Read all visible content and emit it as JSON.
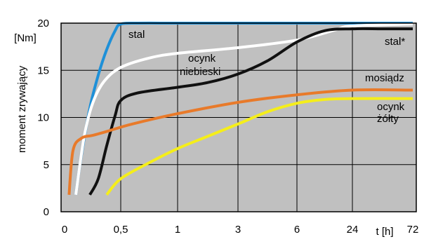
{
  "chart_data": {
    "type": "line",
    "ylabel": "moment zrywający",
    "yunit": "[Nm]",
    "xlabel": "t [h]",
    "x_categories": [
      "0",
      "0,5",
      "1",
      "3",
      "6",
      "24",
      "72"
    ],
    "yticks": [
      "0",
      "5",
      "10",
      "15",
      "20"
    ],
    "ylim": [
      0,
      20
    ],
    "grid": true,
    "colors": {
      "background": "#c0c0c0",
      "grid": "#000000"
    },
    "series": [
      {
        "name": "stal",
        "color": "#1e90d8",
        "x": [
          0.2,
          0.3,
          0.45,
          0.6,
          0.75,
          0.9,
          1.0,
          1.3,
          2.0,
          3.0,
          4.0,
          5.0,
          6.0
        ],
        "y": [
          1.8,
          6,
          11,
          14.5,
          17.2,
          19.2,
          19.9,
          20,
          20,
          20,
          20,
          20,
          20
        ]
      },
      {
        "name": "ocynk niebieski",
        "color": "#ffffff",
        "x": [
          0.2,
          0.35,
          0.5,
          0.7,
          1.0,
          1.5,
          2.0,
          3.0,
          4.0,
          4.7,
          5.0,
          6.0
        ],
        "y": [
          1.8,
          8,
          11.5,
          13.8,
          15.3,
          16.3,
          16.8,
          17.4,
          18.2,
          19.3,
          19.7,
          19.9
        ]
      },
      {
        "name": "stal*",
        "color": "#111111",
        "x": [
          0.45,
          0.6,
          0.75,
          0.9,
          1.0,
          1.3,
          2.0,
          2.5,
          3.0,
          3.5,
          4.0,
          4.5,
          5.0,
          5.5,
          6.0
        ],
        "y": [
          1.8,
          3.5,
          7,
          10.2,
          11.8,
          12.6,
          13.2,
          13.7,
          14.6,
          16.0,
          18.0,
          19.2,
          19.4,
          19.4,
          19.4
        ]
      },
      {
        "name": "mosiądz",
        "color": "#e87a2a",
        "x": [
          0.08,
          0.15,
          0.3,
          0.5,
          0.8,
          1.2,
          2.0,
          3.0,
          4.0,
          5.0,
          6.0
        ],
        "y": [
          1.8,
          6.5,
          7.8,
          8.1,
          8.6,
          9.3,
          10.4,
          11.6,
          12.4,
          12.9,
          12.9
        ]
      },
      {
        "name": "ocynk żółty",
        "color": "#f5ee1a",
        "x": [
          0.75,
          1.0,
          1.5,
          2.0,
          2.5,
          3.0,
          3.5,
          4.0,
          4.5,
          5.0,
          6.0
        ],
        "y": [
          1.8,
          3.5,
          5.2,
          6.7,
          8.0,
          9.3,
          10.6,
          11.5,
          11.9,
          12.0,
          12.0
        ]
      }
    ],
    "labels": [
      "stal",
      "ocynk",
      "niebieski",
      "stal*",
      "mosiądz",
      "ocynk",
      "żółty"
    ]
  }
}
